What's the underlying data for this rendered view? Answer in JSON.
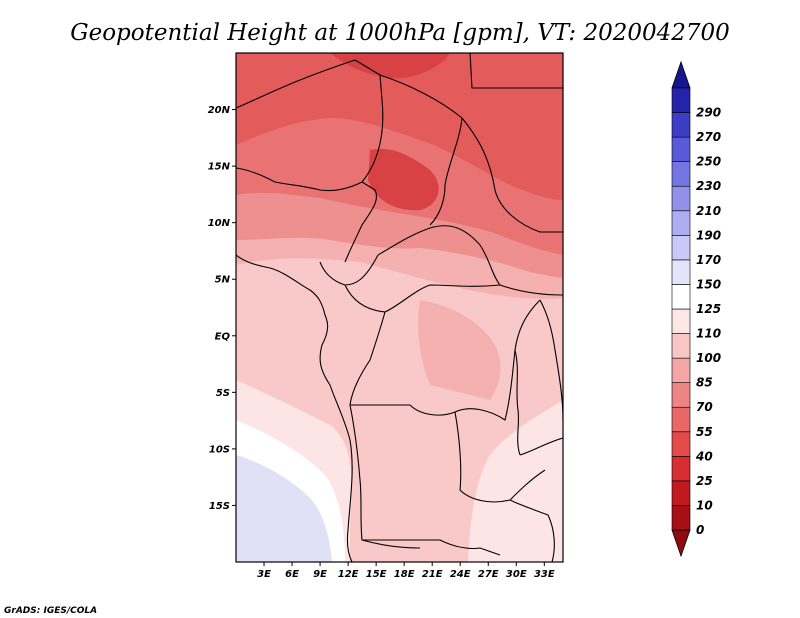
{
  "title": "Geopotential Height at 1000hPa [gpm], VT: 2020042700",
  "credit": "GrADS: IGES/COLA",
  "map": {
    "lon_range": [
      0,
      35
    ],
    "lat_range": [
      -20,
      25
    ],
    "lat_ticks": [
      {
        "value": 20,
        "label": "20N"
      },
      {
        "value": 15,
        "label": "15N"
      },
      {
        "value": 10,
        "label": "10N"
      },
      {
        "value": 5,
        "label": "5N"
      },
      {
        "value": 0,
        "label": "EQ"
      },
      {
        "value": -5,
        "label": "5S"
      },
      {
        "value": -10,
        "label": "10S"
      },
      {
        "value": -15,
        "label": "15S"
      }
    ],
    "lon_ticks": [
      {
        "value": 3,
        "label": "3E"
      },
      {
        "value": 6,
        "label": "6E"
      },
      {
        "value": 9,
        "label": "9E"
      },
      {
        "value": 12,
        "label": "12E"
      },
      {
        "value": 15,
        "label": "15E"
      },
      {
        "value": 18,
        "label": "18E"
      },
      {
        "value": 21,
        "label": "21E"
      },
      {
        "value": 24,
        "label": "24E"
      },
      {
        "value": 27,
        "label": "27E"
      },
      {
        "value": 30,
        "label": "30E"
      },
      {
        "value": 33,
        "label": "33E"
      }
    ]
  },
  "colorbar": {
    "levels": [
      {
        "label": "0",
        "color": "#a50f15"
      },
      {
        "label": "10",
        "color": "#c0191f"
      },
      {
        "label": "25",
        "color": "#d62e33"
      },
      {
        "label": "40",
        "color": "#e34a4a"
      },
      {
        "label": "55",
        "color": "#e96767"
      },
      {
        "label": "70",
        "color": "#ee8585"
      },
      {
        "label": "85",
        "color": "#f4a5a5"
      },
      {
        "label": "100",
        "color": "#f9c6c6"
      },
      {
        "label": "110",
        "color": "#fde6e6"
      },
      {
        "label": "125",
        "color": "#ffffff"
      },
      {
        "label": "150",
        "color": "#e3e3f9"
      },
      {
        "label": "170",
        "color": "#c9c9f7"
      },
      {
        "label": "190",
        "color": "#adadf2"
      },
      {
        "label": "210",
        "color": "#9191ec"
      },
      {
        "label": "230",
        "color": "#7575e2"
      },
      {
        "label": "250",
        "color": "#5a5ad6"
      },
      {
        "label": "270",
        "color": "#3d3dc4"
      },
      {
        "label": "290",
        "color": "#2424aa"
      }
    ],
    "top_color": "#15158f",
    "bottom_color": "#8e0b10"
  },
  "field_colors": {
    "c25": "#d94244",
    "c40": "#e45b5b",
    "c55": "#e97373",
    "c70": "#ef9090",
    "c85": "#f5b0b0",
    "c100": "#f9c9c9",
    "c110": "#fde5e5",
    "c125": "#ffffff",
    "c150": "#e0e0f7",
    "c170": "#c6c6f4",
    "c190": "#a8a8ee"
  }
}
